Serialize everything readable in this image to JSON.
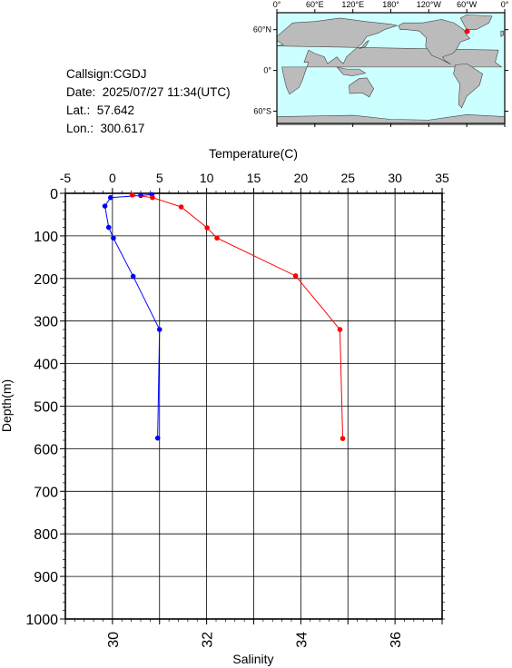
{
  "info": {
    "callsign": "Callsign:CGDJ",
    "date": "Date:  2025/07/27 11:34(UTC)",
    "lat": "Lat.:  57.642",
    "lon": "Lon.:  300.617"
  },
  "map": {
    "lon_labels": [
      "0°",
      "60°E",
      "120°E",
      "180°",
      "120°W",
      "60°W",
      "0°"
    ],
    "lat_labels": [
      "60°N",
      "0°",
      "60°S"
    ],
    "ocean_color": "#ccffff",
    "land_color": "#bbbbbb",
    "station_color": "#ff0000",
    "station": {
      "lat": 57.642,
      "lon": 300.617
    }
  },
  "chart_data": {
    "type": "line",
    "title": "",
    "top_axis": {
      "label": "Temperature(C)",
      "range": [
        -5,
        35
      ],
      "ticks": [
        "-5",
        "0",
        "5",
        "10",
        "15",
        "20",
        "25",
        "30",
        "35"
      ]
    },
    "bottom_axis": {
      "label": "Salinity",
      "range": [
        29,
        37
      ],
      "ticks": [
        "30",
        "32",
        "34",
        "36"
      ]
    },
    "left_axis": {
      "label": "Depth(m)",
      "range": [
        0,
        1000
      ],
      "inverted": true,
      "ticks": [
        "0",
        "100",
        "200",
        "300",
        "400",
        "500",
        "600",
        "700",
        "800",
        "900",
        "1000"
      ]
    },
    "grid": true,
    "series": [
      {
        "color": "#0000ff",
        "axis": "temperature",
        "points": [
          [
            4.2,
            3
          ],
          [
            3.0,
            5
          ],
          [
            -0.2,
            10
          ],
          [
            -0.8,
            30
          ],
          [
            -0.4,
            80
          ],
          [
            0.1,
            105
          ],
          [
            2.2,
            195
          ],
          [
            5.0,
            320
          ],
          [
            4.8,
            575
          ]
        ]
      },
      {
        "color": "#ff0000",
        "axis": "salinity",
        "points": [
          [
            30.42,
            4
          ],
          [
            30.85,
            10
          ],
          [
            31.46,
            32
          ],
          [
            32.01,
            81
          ],
          [
            32.22,
            105
          ],
          [
            33.89,
            194
          ],
          [
            34.83,
            320
          ],
          [
            34.89,
            576
          ]
        ]
      }
    ]
  }
}
